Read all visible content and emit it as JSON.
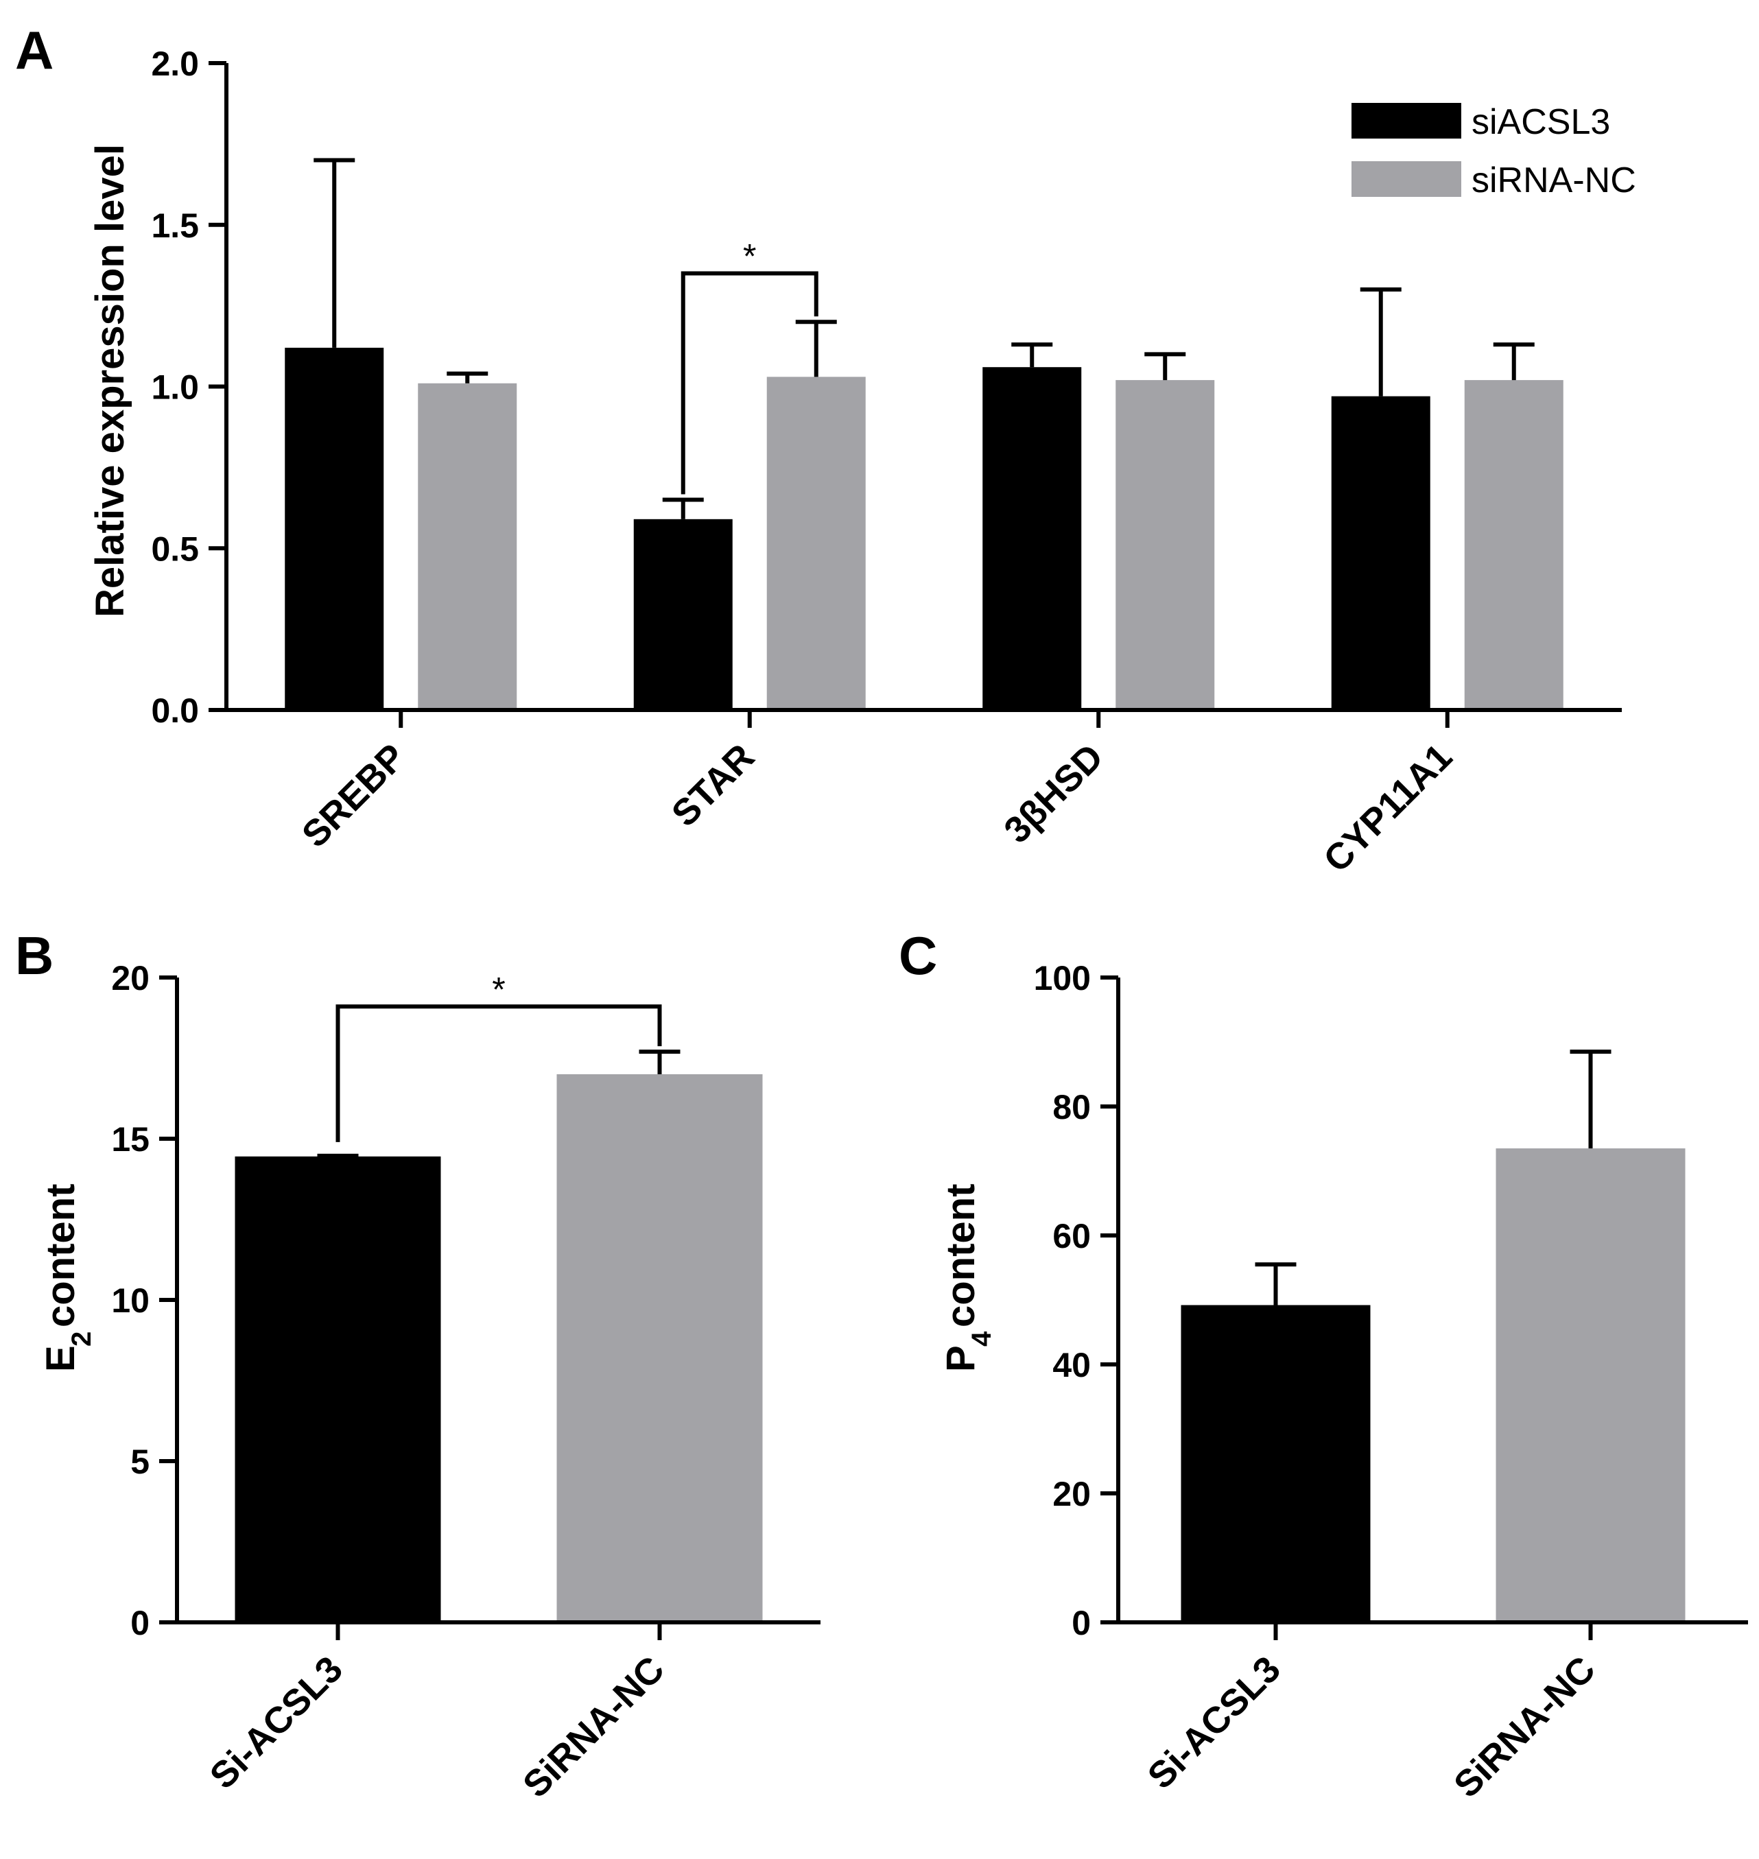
{
  "chart_data": [
    {
      "id": "A",
      "panel_label": "A",
      "type": "bar",
      "title": "",
      "xlabel": "",
      "ylabel": "Relative expression level",
      "ylim": [
        0,
        2.0
      ],
      "yticks": [
        "0.0",
        "0.5",
        "1.0",
        "1.5",
        "2.0"
      ],
      "categories": [
        "SREBP",
        "STAR",
        "3βHSD",
        "CYP11A1"
      ],
      "series": [
        {
          "name": "siACSL3",
          "color": "#000000",
          "values": [
            1.12,
            0.59,
            1.06,
            0.97
          ],
          "errors": [
            0.58,
            0.06,
            0.07,
            0.33
          ]
        },
        {
          "name": "siRNA-NC",
          "color": "#a3a3a7",
          "values": [
            1.01,
            1.03,
            1.02,
            1.02
          ],
          "errors": [
            0.03,
            0.17,
            0.08,
            0.11
          ]
        }
      ],
      "legend": {
        "position": "top-right",
        "entries": [
          "siACSL3",
          "siRNA-NC"
        ]
      },
      "annotations": [
        {
          "text": "*",
          "category": "STAR",
          "between": [
            "siACSL3",
            "siRNA-NC"
          ]
        }
      ]
    },
    {
      "id": "B",
      "panel_label": "B",
      "type": "bar",
      "title": "",
      "xlabel": "",
      "ylabel": "E",
      "ylabel_subscript": "2",
      "ylabel_rest": "content",
      "ylim": [
        0,
        20
      ],
      "yticks": [
        "0",
        "5",
        "10",
        "15",
        "20"
      ],
      "categories": [
        "Si-ACSL3",
        "SiRNA-NC"
      ],
      "values": [
        14.45,
        17.0
      ],
      "errors": [
        0.02,
        0.7
      ],
      "colors": [
        "#000000",
        "#a3a3a7"
      ],
      "annotations": [
        {
          "text": "*",
          "between": [
            "Si-ACSL3",
            "SiRNA-NC"
          ]
        }
      ]
    },
    {
      "id": "C",
      "panel_label": "C",
      "type": "bar",
      "title": "",
      "xlabel": "",
      "ylabel": "P",
      "ylabel_subscript": "4",
      "ylabel_rest": "content",
      "ylim": [
        0,
        100
      ],
      "yticks": [
        "0",
        "20",
        "40",
        "60",
        "80",
        "100"
      ],
      "categories": [
        "Si-ACSL3",
        "SiRNA-NC"
      ],
      "values": [
        49.2,
        73.5
      ],
      "errors": [
        6.3,
        15.0
      ],
      "colors": [
        "#000000",
        "#a3a3a7"
      ]
    }
  ]
}
